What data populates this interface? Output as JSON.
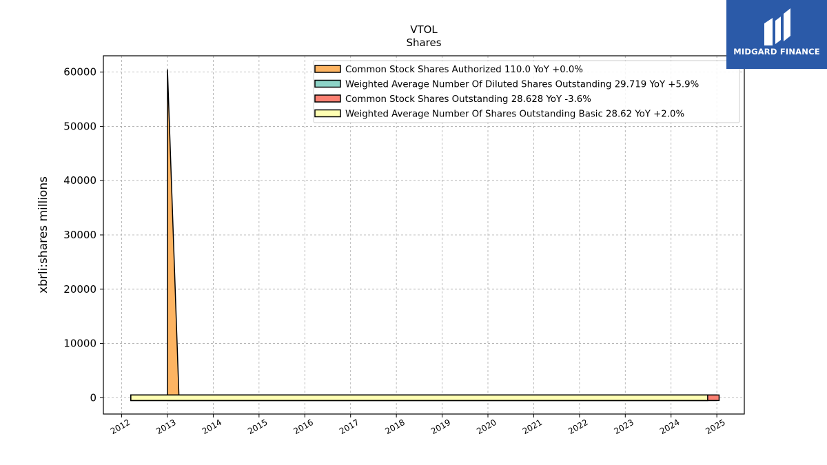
{
  "brand": {
    "name": "MIDGARD FINANCE",
    "accent": "#2b5aa8"
  },
  "chart_data": {
    "type": "area",
    "title": "VTOL",
    "subtitle": "Shares",
    "xlabel": "",
    "ylabel": "xbrli:shares millions",
    "xlim": [
      2011.6,
      2025.6
    ],
    "ylim": [
      -3000,
      63000
    ],
    "x_ticks": [
      "2012",
      "2013",
      "2014",
      "2015",
      "2016",
      "2017",
      "2018",
      "2019",
      "2020",
      "2021",
      "2022",
      "2023",
      "2024",
      "2025"
    ],
    "y_ticks": [
      0,
      10000,
      20000,
      30000,
      40000,
      50000,
      60000
    ],
    "grid": true,
    "legend_position": "top-right",
    "series": [
      {
        "name": "Common Stock Shares Authorized  110.0 YoY +0.0%",
        "color": "#fdb462",
        "x": [
          2013.0,
          2013.25,
          2025.0
        ],
        "values": [
          60500,
          110,
          110
        ]
      },
      {
        "name": "Weighted Average Number Of Diluted Shares Outstanding  29.719 YoY +5.9%",
        "color": "#8dd3c7",
        "x": [
          2012.2,
          2019.8,
          2020.5,
          2024.8
        ],
        "values": [
          35,
          35,
          36,
          29.719
        ]
      },
      {
        "name": "Common Stock Shares Outstanding  28.628 YoY -3.6%",
        "color": "#fb8072",
        "x": [
          2012.2,
          2019.8,
          2020.5,
          2024.8,
          2025.05
        ],
        "values": [
          34,
          34,
          35,
          29.7,
          28.628
        ]
      },
      {
        "name": "Weighted Average Number Of Shares Outstanding Basic  28.62 YoY +2.0%",
        "color": "#ffffb3",
        "x": [
          2012.2,
          2019.8,
          2020.5,
          2024.8
        ],
        "values": [
          34,
          34,
          35,
          28.62
        ]
      }
    ]
  }
}
